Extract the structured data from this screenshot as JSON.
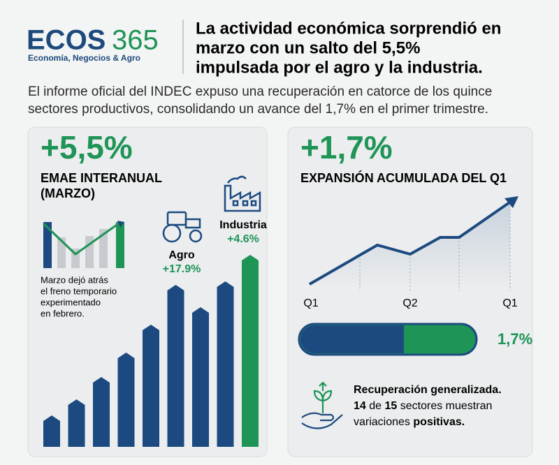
{
  "header": {
    "logo": {
      "brand": "ECOS",
      "number": "365",
      "tagline": "Economía, Negocios & Agro"
    },
    "headline": [
      "La actividad económica sorprendió en",
      "marzo con un salto del 5,5%",
      "impulsada por el agro y la industria."
    ],
    "lead": [
      "El informe oficial del INDEC expuso una recuperación en catorce de los quince",
      "sectores productivos, consolidando un avance del 1,7% en el primer trimestre."
    ]
  },
  "left_panel": {
    "big_number": "+5,5%",
    "label": [
      "EMAE INTERANUAL",
      "(MARZO)"
    ],
    "note": [
      "Marzo dejó atrás",
      "el freno temporario",
      "experimentado",
      "en febrero."
    ],
    "agro": {
      "name": "Agro",
      "value": "+17.9%"
    },
    "industria": {
      "name": "Industria",
      "value": "+4.6%"
    }
  },
  "right_panel": {
    "big_number": "+1,7%",
    "label": "EXPANSIÓN ACUMULADA DEL Q1",
    "axis_labels": [
      "Q1",
      "Q2",
      "Q1"
    ],
    "progress_label": "1,7%",
    "summary": {
      "title": "Recuperación generalizada.",
      "line2": [
        "14",
        "de",
        "15",
        "sectores muestran"
      ],
      "line3": [
        "variaciones",
        "positivas."
      ]
    }
  }
}
